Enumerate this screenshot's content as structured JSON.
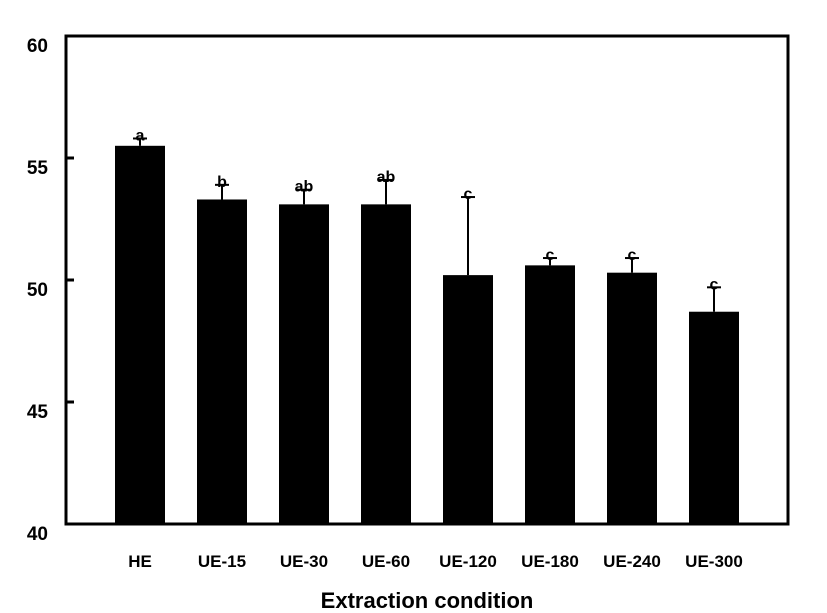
{
  "chart_data": {
    "type": "bar",
    "xlabel": "Extraction condition",
    "ylabel": "",
    "ylim": [
      40,
      60
    ],
    "yticks": [
      40,
      45,
      50,
      55,
      60
    ],
    "grid": false,
    "bar_color": "#000000",
    "categories": [
      "HE",
      "UE-15",
      "UE-30",
      "UE-60",
      "UE-120",
      "UE-180",
      "UE-240",
      "UE-300"
    ],
    "values": [
      55.5,
      53.3,
      53.1,
      53.1,
      50.2,
      50.6,
      50.3,
      48.7
    ],
    "errors": [
      0.3,
      0.6,
      0.6,
      1.0,
      3.2,
      0.3,
      0.6,
      1.0
    ],
    "significance_labels": [
      "a",
      "b",
      "ab",
      "ab",
      "c",
      "c",
      "c",
      "c"
    ]
  }
}
